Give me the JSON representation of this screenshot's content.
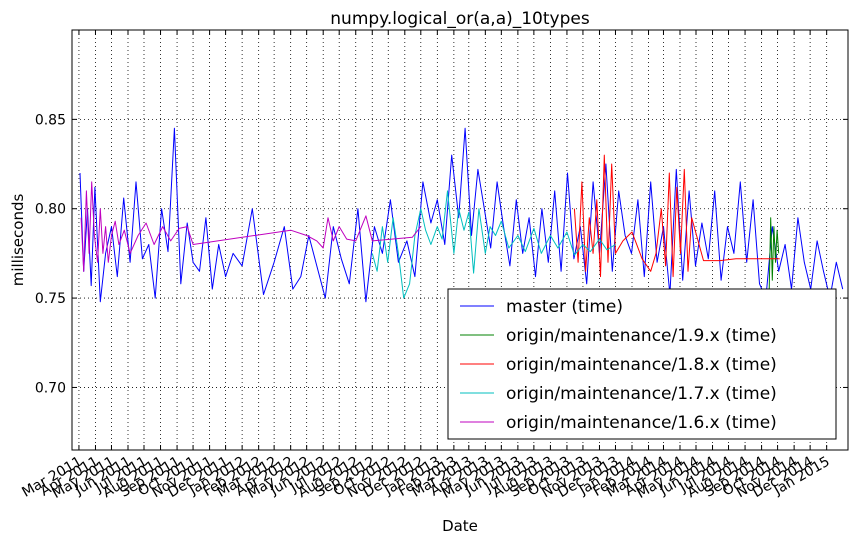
{
  "chart_data": {
    "type": "line",
    "title": "numpy.logical_or(a,a)_10types",
    "xlabel": "Date",
    "ylabel": "milliseconds",
    "xlim": [
      "2011-02-16",
      "2015-02-10"
    ],
    "ylim": [
      0.665,
      0.9
    ],
    "yticks": [
      0.7,
      0.75,
      0.8,
      0.85
    ],
    "ytick_labels": [
      "0.70",
      "0.75",
      "0.80",
      "0.85"
    ],
    "xticks": [
      "2011-03-01",
      "2011-04-01",
      "2011-05-01",
      "2011-06-01",
      "2011-07-01",
      "2011-08-01",
      "2011-09-01",
      "2011-10-01",
      "2011-11-01",
      "2011-12-01",
      "2012-01-01",
      "2012-02-01",
      "2012-03-01",
      "2012-04-01",
      "2012-05-01",
      "2012-06-01",
      "2012-07-01",
      "2012-08-01",
      "2012-09-01",
      "2012-10-01",
      "2012-11-01",
      "2012-12-01",
      "2013-01-01",
      "2013-02-01",
      "2013-03-01",
      "2013-04-01",
      "2013-05-01",
      "2013-06-01",
      "2013-07-01",
      "2013-08-01",
      "2013-09-01",
      "2013-10-01",
      "2013-11-01",
      "2013-12-01",
      "2014-01-01",
      "2014-02-01",
      "2014-03-01",
      "2014-04-01",
      "2014-05-01",
      "2014-06-01",
      "2014-07-01",
      "2014-08-01",
      "2014-09-01",
      "2014-10-01",
      "2014-11-01",
      "2014-12-01",
      "2015-01-01"
    ],
    "xtick_labels": [
      "Mar 2011",
      "Apr 2011",
      "May 2011",
      "Jun 2011",
      "Jul 2011",
      "Aug 2011",
      "Sep 2011",
      "Oct 2011",
      "Nov 2011",
      "Dec 2011",
      "Jan 2012",
      "Feb 2012",
      "Mar 2012",
      "Apr 2012",
      "May 2012",
      "Jun 2012",
      "Jul 2012",
      "Aug 2012",
      "Sep 2012",
      "Oct 2012",
      "Nov 2012",
      "Dec 2012",
      "Jan 2013",
      "Feb 2013",
      "Mar 2013",
      "Apr 2013",
      "May 2013",
      "Jun 2013",
      "Jul 2013",
      "Aug 2013",
      "Sep 2013",
      "Oct 2013",
      "Nov 2013",
      "Dec 2013",
      "Jan 2014",
      "Feb 2014",
      "Mar 2014",
      "Apr 2014",
      "May 2014",
      "Jun 2014",
      "Jul 2014",
      "Aug 2014",
      "Sep 2014",
      "Oct 2014",
      "Nov 2014",
      "Dec 2014",
      "Jan 2015"
    ],
    "grid": true,
    "legend_position": "lower-right",
    "series": [
      {
        "name": "master (time)",
        "color": "#0000ff",
        "x": [
          "2011-03-03",
          "2011-03-10",
          "2011-03-17",
          "2011-03-24",
          "2011-03-31",
          "2011-04-10",
          "2011-04-20",
          "2011-05-01",
          "2011-05-12",
          "2011-05-24",
          "2011-06-05",
          "2011-06-16",
          "2011-06-28",
          "2011-07-10",
          "2011-07-22",
          "2011-08-03",
          "2011-08-15",
          "2011-08-27",
          "2011-09-08",
          "2011-09-20",
          "2011-10-01",
          "2011-10-13",
          "2011-10-25",
          "2011-11-06",
          "2011-11-18",
          "2011-12-01",
          "2011-12-15",
          "2012-01-01",
          "2012-01-20",
          "2012-02-10",
          "2012-03-01",
          "2012-03-20",
          "2012-04-05",
          "2012-04-20",
          "2012-05-05",
          "2012-05-20",
          "2012-06-05",
          "2012-06-20",
          "2012-07-05",
          "2012-07-20",
          "2012-08-05",
          "2012-08-20",
          "2012-09-05",
          "2012-09-20",
          "2012-10-05",
          "2012-10-20",
          "2012-11-05",
          "2012-11-20",
          "2012-12-05",
          "2012-12-20",
          "2013-01-01",
          "2013-01-15",
          "2013-01-28",
          "2013-02-10",
          "2013-02-22",
          "2013-03-06",
          "2013-03-18",
          "2013-03-30",
          "2013-04-11",
          "2013-04-23",
          "2013-05-05",
          "2013-05-17",
          "2013-05-29",
          "2013-06-10",
          "2013-06-22",
          "2013-07-04",
          "2013-07-16",
          "2013-07-28",
          "2013-08-09",
          "2013-08-21",
          "2013-09-02",
          "2013-09-14",
          "2013-09-26",
          "2013-10-08",
          "2013-10-20",
          "2013-11-01",
          "2013-11-13",
          "2013-11-25",
          "2013-12-07",
          "2013-12-19",
          "2013-12-31",
          "2014-01-12",
          "2014-01-24",
          "2014-02-05",
          "2014-02-17",
          "2014-03-01",
          "2014-03-13",
          "2014-03-25",
          "2014-04-06",
          "2014-04-18",
          "2014-04-30",
          "2014-05-12",
          "2014-05-24",
          "2014-06-05",
          "2014-06-17",
          "2014-06-29",
          "2014-07-11",
          "2014-07-23",
          "2014-08-04",
          "2014-08-16",
          "2014-08-28",
          "2014-09-09",
          "2014-09-21",
          "2014-10-03",
          "2014-10-15",
          "2014-10-27",
          "2014-11-08",
          "2014-11-20",
          "2014-12-02",
          "2014-12-14",
          "2014-12-26",
          "2015-01-07",
          "2015-01-19",
          "2015-01-31"
        ],
        "values": [
          0.82,
          0.765,
          0.8,
          0.757,
          0.812,
          0.748,
          0.775,
          0.79,
          0.762,
          0.806,
          0.77,
          0.815,
          0.772,
          0.78,
          0.75,
          0.8,
          0.776,
          0.845,
          0.758,
          0.792,
          0.77,
          0.765,
          0.795,
          0.755,
          0.78,
          0.762,
          0.775,
          0.768,
          0.8,
          0.752,
          0.77,
          0.79,
          0.755,
          0.762,
          0.785,
          0.768,
          0.75,
          0.79,
          0.772,
          0.758,
          0.8,
          0.748,
          0.79,
          0.775,
          0.805,
          0.77,
          0.782,
          0.762,
          0.815,
          0.792,
          0.805,
          0.78,
          0.83,
          0.795,
          0.845,
          0.785,
          0.822,
          0.8,
          0.778,
          0.815,
          0.79,
          0.768,
          0.805,
          0.775,
          0.795,
          0.762,
          0.8,
          0.77,
          0.81,
          0.765,
          0.82,
          0.772,
          0.79,
          0.758,
          0.815,
          0.775,
          0.825,
          0.765,
          0.81,
          0.785,
          0.775,
          0.805,
          0.762,
          0.815,
          0.77,
          0.79,
          0.752,
          0.822,
          0.76,
          0.81,
          0.768,
          0.792,
          0.772,
          0.81,
          0.76,
          0.79,
          0.775,
          0.815,
          0.77,
          0.805,
          0.758,
          0.75,
          0.79,
          0.765,
          0.78,
          0.755,
          0.795,
          0.77,
          0.755,
          0.782,
          0.765,
          0.75,
          0.77,
          0.755
        ]
      },
      {
        "name": "origin/maintenance/1.9.x (time)",
        "color": "#008000",
        "x": [
          "2014-09-15",
          "2014-09-18",
          "2014-09-21",
          "2014-09-24",
          "2014-09-27",
          "2014-09-30",
          "2014-10-03"
        ],
        "values": [
          0.752,
          0.795,
          0.76,
          0.79,
          0.77,
          0.788,
          0.775
        ]
      },
      {
        "name": "origin/maintenance/1.8.x (time)",
        "color": "#ff0000",
        "x": [
          "2013-09-15",
          "2013-09-22",
          "2013-09-29",
          "2013-10-06",
          "2013-10-13",
          "2013-10-20",
          "2013-10-27",
          "2013-11-03",
          "2013-11-10",
          "2013-11-17",
          "2013-11-24",
          "2013-12-01",
          "2013-12-15",
          "2014-01-01",
          "2014-01-20",
          "2014-02-05",
          "2014-02-15",
          "2014-02-25",
          "2014-03-05",
          "2014-03-12",
          "2014-03-19",
          "2014-03-26",
          "2014-04-02",
          "2014-04-09",
          "2014-04-16",
          "2014-04-23",
          "2014-05-15",
          "2014-06-15",
          "2014-07-15",
          "2014-08-15",
          "2014-09-15",
          "2014-10-05"
        ],
        "values": [
          0.8,
          0.77,
          0.815,
          0.765,
          0.795,
          0.775,
          0.805,
          0.762,
          0.83,
          0.77,
          0.825,
          0.775,
          0.782,
          0.787,
          0.772,
          0.765,
          0.775,
          0.8,
          0.768,
          0.82,
          0.762,
          0.812,
          0.775,
          0.822,
          0.765,
          0.795,
          0.771,
          0.771,
          0.772,
          0.772,
          0.772,
          0.772
        ]
      },
      {
        "name": "origin/maintenance/1.7.x (time)",
        "color": "#00bfbf",
        "x": [
          "2012-09-01",
          "2012-09-10",
          "2012-09-20",
          "2012-09-30",
          "2012-10-10",
          "2012-10-20",
          "2012-10-30",
          "2012-11-10",
          "2012-11-20",
          "2012-12-01",
          "2012-12-10",
          "2012-12-20",
          "2013-01-01",
          "2013-01-10",
          "2013-01-20",
          "2013-02-01",
          "2013-02-10",
          "2013-02-20",
          "2013-03-01",
          "2013-03-10",
          "2013-03-20",
          "2013-04-01",
          "2013-04-10",
          "2013-04-20",
          "2013-05-01",
          "2013-05-15",
          "2013-06-01",
          "2013-06-15",
          "2013-07-01",
          "2013-07-15",
          "2013-08-01",
          "2013-08-15",
          "2013-09-01",
          "2013-09-15",
          "2013-10-01",
          "2013-10-15",
          "2013-11-01",
          "2013-11-15",
          "2013-12-01"
        ],
        "values": [
          0.775,
          0.765,
          0.79,
          0.77,
          0.795,
          0.775,
          0.75,
          0.758,
          0.785,
          0.8,
          0.788,
          0.78,
          0.79,
          0.783,
          0.81,
          0.775,
          0.8,
          0.788,
          0.798,
          0.764,
          0.8,
          0.775,
          0.79,
          0.785,
          0.793,
          0.778,
          0.785,
          0.776,
          0.789,
          0.775,
          0.785,
          0.778,
          0.787,
          0.774,
          0.78,
          0.776,
          0.783,
          0.777,
          0.78
        ]
      },
      {
        "name": "origin/maintenance/1.6.x (time)",
        "color": "#bf00bf",
        "x": [
          "2011-03-05",
          "2011-03-10",
          "2011-03-15",
          "2011-03-20",
          "2011-03-25",
          "2011-03-30",
          "2011-04-05",
          "2011-04-10",
          "2011-04-15",
          "2011-04-20",
          "2011-04-25",
          "2011-05-01",
          "2011-05-08",
          "2011-05-15",
          "2011-05-25",
          "2011-06-05",
          "2011-06-20",
          "2011-07-05",
          "2011-07-20",
          "2011-08-05",
          "2011-08-20",
          "2011-09-05",
          "2011-09-20",
          "2011-10-01",
          "2012-04-01",
          "2012-05-01",
          "2012-05-20",
          "2012-06-01",
          "2012-06-10",
          "2012-06-20",
          "2012-07-01",
          "2012-07-15",
          "2012-08-01",
          "2012-08-20",
          "2012-09-01",
          "2012-11-15",
          "2012-12-01"
        ],
        "values": [
          0.795,
          0.765,
          0.81,
          0.775,
          0.815,
          0.785,
          0.77,
          0.8,
          0.775,
          0.79,
          0.77,
          0.785,
          0.793,
          0.78,
          0.788,
          0.775,
          0.785,
          0.792,
          0.78,
          0.79,
          0.782,
          0.789,
          0.79,
          0.78,
          0.788,
          0.785,
          0.782,
          0.778,
          0.795,
          0.782,
          0.79,
          0.783,
          0.782,
          0.796,
          0.782,
          0.784,
          0.79
        ]
      }
    ]
  }
}
